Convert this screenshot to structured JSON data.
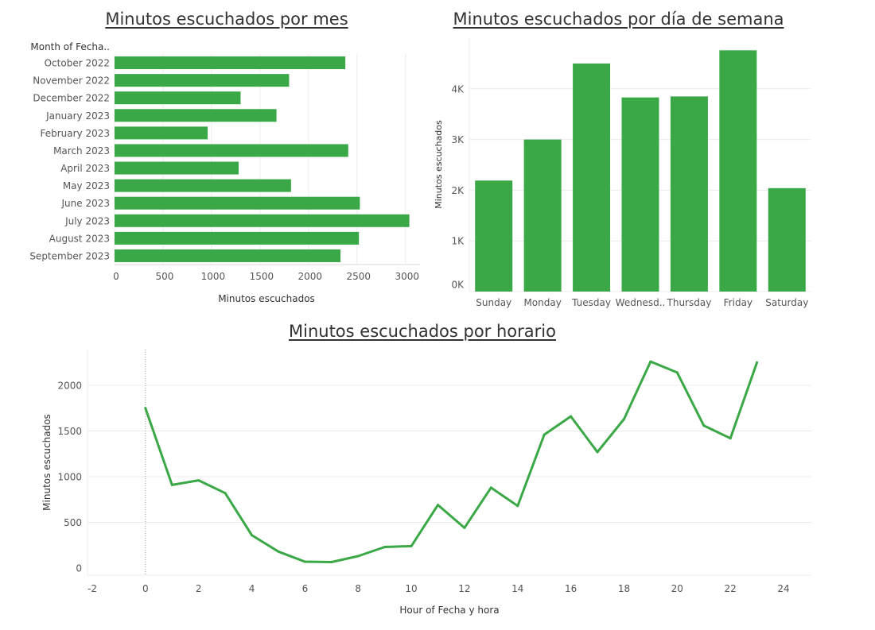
{
  "chart_data": [
    {
      "type": "bar",
      "orientation": "horizontal",
      "title": "Minutos escuchados por mes",
      "category_header": "Month of Fecha..",
      "xlabel": "Minutos escuchados",
      "ylabel": "",
      "categories": [
        "October 2022",
        "November 2022",
        "December 2022",
        "January 2023",
        "February 2023",
        "March 2023",
        "April 2023",
        "May 2023",
        "June 2023",
        "July 2023",
        "August 2023",
        "September 2023"
      ],
      "values": [
        2380,
        1800,
        1300,
        1670,
        960,
        2410,
        1280,
        1820,
        2530,
        3040,
        2520,
        2330
      ],
      "xlim": [
        0,
        3150
      ],
      "xticks": [
        0,
        500,
        1000,
        1500,
        2000,
        2500,
        3000
      ],
      "xtick_labels": [
        "0",
        "500",
        "1000",
        "1500",
        "2000",
        "2500",
        "3000"
      ],
      "color": "#3aa846",
      "grid": true
    },
    {
      "type": "bar",
      "title": "Minutos escuchados por día de semana",
      "xlabel": "",
      "ylabel": "Minutos escuchados",
      "categories": [
        "Sunday",
        "Monday",
        "Tuesday",
        "Wednesd..",
        "Thursday",
        "Friday",
        "Saturday"
      ],
      "values": [
        2190,
        3000,
        4500,
        3830,
        3850,
        4760,
        2040
      ],
      "ylim": [
        0,
        5000
      ],
      "yticks": [
        0,
        1000,
        2000,
        3000,
        4000
      ],
      "ytick_labels": [
        "0K",
        "1K",
        "2K",
        "3K",
        "4K"
      ],
      "color": "#3aa846",
      "grid": true
    },
    {
      "type": "line",
      "title": "Minutos escuchados por horario",
      "xlabel": "Hour of Fecha y hora",
      "ylabel": "Minutos escuchados",
      "x": [
        0,
        1,
        2,
        3,
        4,
        5,
        6,
        7,
        8,
        9,
        10,
        11,
        12,
        13,
        14,
        15,
        16,
        17,
        18,
        19,
        20,
        21,
        22,
        23
      ],
      "y": [
        1750,
        910,
        960,
        820,
        360,
        180,
        70,
        65,
        130,
        230,
        240,
        690,
        440,
        880,
        680,
        1460,
        1660,
        1270,
        1630,
        2260,
        2140,
        1560,
        1420,
        2250
      ],
      "xlim": [
        -2,
        25
      ],
      "ylim": [
        -80,
        2400
      ],
      "xticks": [
        -2,
        0,
        2,
        4,
        6,
        8,
        10,
        12,
        14,
        16,
        18,
        20,
        22,
        24
      ],
      "yticks": [
        0,
        500,
        1000,
        1500,
        2000
      ],
      "color": "#3aa846",
      "grid": true
    }
  ]
}
